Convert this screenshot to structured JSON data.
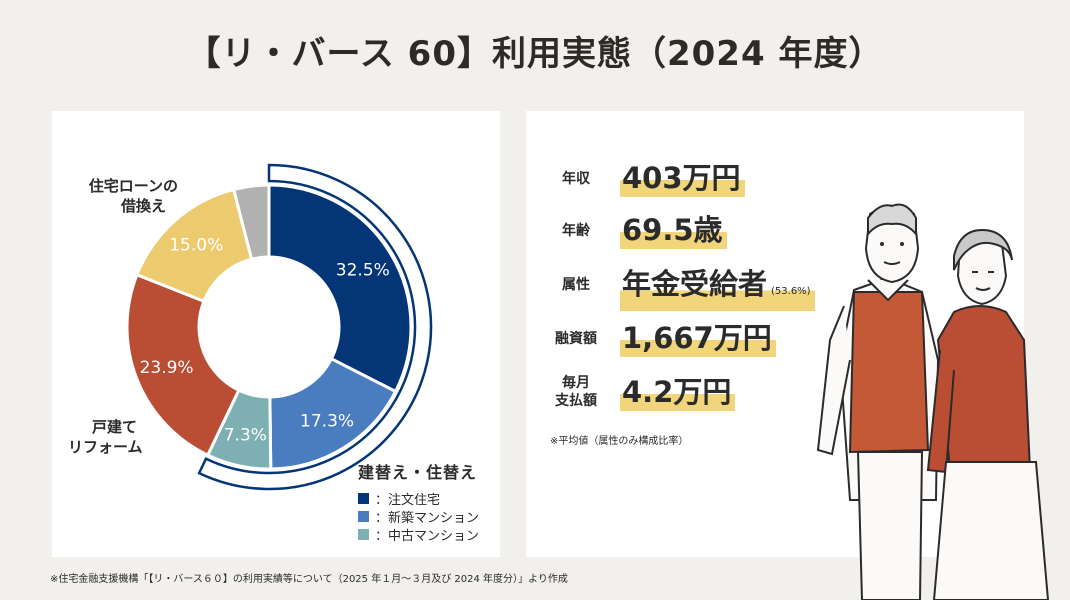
{
  "title": "【リ・バース 60】利用実態（2024 年度）",
  "chart_data": {
    "type": "pie",
    "style": "donut",
    "slices": [
      {
        "label": "注文住宅",
        "value": 32.5,
        "value_label": "32.5%",
        "color": "#043577",
        "group": "建替え・住替え"
      },
      {
        "label": "新築マンション",
        "value": 17.3,
        "value_label": "17.3%",
        "color": "#4a7cc0",
        "group": "建替え・住替え"
      },
      {
        "label": "中古マンション",
        "value": 7.3,
        "value_label": "7.3%",
        "color": "#7eb0b3",
        "group": "建替え・住替え"
      },
      {
        "label": "戸建てリフォーム",
        "value": 23.9,
        "value_label": "23.9%",
        "color": "#b94e34"
      },
      {
        "label": "住宅ローンの借換え",
        "value": 15.0,
        "value_label": "15.0%",
        "color": "#eccb6e"
      },
      {
        "label": "",
        "value": 4.0,
        "value_label": "",
        "color": "#b1b1b1"
      }
    ],
    "category_labels": {
      "refinance_line1": "住宅ローンの",
      "refinance_line2": "借換え",
      "reform_line1": "戸建て",
      "reform_line2": "リフォーム"
    },
    "legend": {
      "title": "建替え・住替え",
      "items": [
        {
          "label": "：注文住宅",
          "color": "#043577"
        },
        {
          "label": "：新築マンション",
          "color": "#4a7cc0"
        },
        {
          "label": "：中古マンション",
          "color": "#7eb0b3"
        }
      ]
    }
  },
  "stats": [
    {
      "label": "年収",
      "value": "403万円",
      "note": ""
    },
    {
      "label": "年齢",
      "value": "69.5歳",
      "note": ""
    },
    {
      "label": "属性",
      "value": "年金受給者",
      "note": "(53.6%)"
    },
    {
      "label": "融資額",
      "value": "1,667万円",
      "note": ""
    },
    {
      "label_line1": "毎月",
      "label_line2": "支払額",
      "value": "4.2万円",
      "note": ""
    }
  ],
  "avg_note": "※平均値（属性のみ構成比率）",
  "source": "※住宅金融支援機構「【リ・バース６０】の利用実績等について（2025 年１月～３月及び 2024 年度分）」より作成"
}
